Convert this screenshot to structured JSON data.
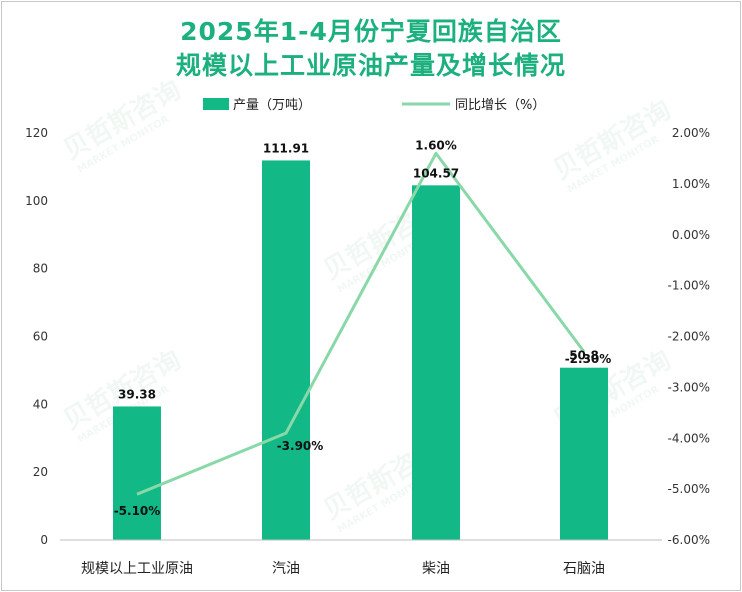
{
  "title": {
    "line1": "2025年1-4月份宁夏回族自治区",
    "line2": "规模以上工业原油产量及增长情况"
  },
  "watermark": {
    "cn": "贝哲斯咨询",
    "en": "MARKET MONITOR"
  },
  "colors": {
    "bar": "#12b886",
    "line": "#88d8a8",
    "title": "#1bb07d"
  },
  "chart_data": {
    "type": "bar",
    "categories": [
      "规模以上工业原油",
      "汽油",
      "柴油",
      "石脑油"
    ],
    "series": [
      {
        "name": "产量（万吨）",
        "type": "bar",
        "axis": "left",
        "values": [
          39.38,
          111.91,
          104.57,
          50.8
        ],
        "labels": [
          "39.38",
          "111.91",
          "104.57",
          "50.8"
        ]
      },
      {
        "name": "同比增长（%）",
        "type": "line",
        "axis": "right",
        "values": [
          -5.1,
          -3.9,
          1.6,
          -2.3
        ],
        "labels": [
          "-5.10%",
          "-3.90%",
          "1.60%",
          "-2.30%"
        ]
      }
    ],
    "y_left": {
      "min": 0,
      "max": 120,
      "ticks": [
        "0",
        "20",
        "40",
        "60",
        "80",
        "100",
        "120"
      ]
    },
    "y_right": {
      "min": -6,
      "max": 2,
      "ticks": [
        "-6.00%",
        "-5.00%",
        "-4.00%",
        "-3.00%",
        "-2.00%",
        "-1.00%",
        "0.00%",
        "1.00%",
        "2.00%"
      ]
    },
    "legend_position": "top-center"
  }
}
